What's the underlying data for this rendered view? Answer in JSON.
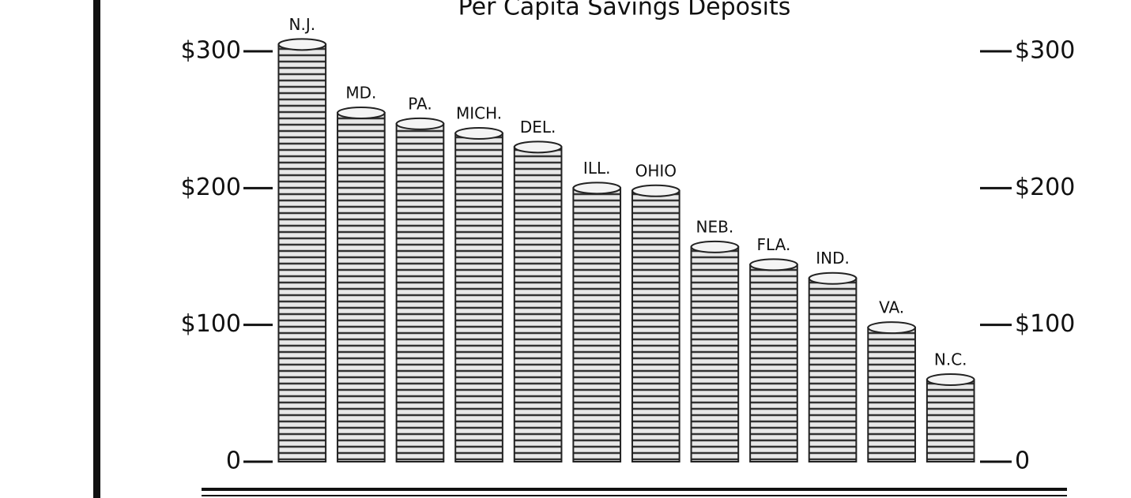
{
  "chart_data": {
    "type": "bar",
    "title": "Per Capita Savings Deposits",
    "categories": [
      "N.J.",
      "MD.",
      "PA.",
      "MICH.",
      "DEL.",
      "ILL.",
      "OHIO",
      "NEB.",
      "FLA.",
      "IND.",
      "VA.",
      "N.C."
    ],
    "values": [
      305,
      255,
      247,
      240,
      230,
      200,
      198,
      157,
      144,
      134,
      98,
      60
    ],
    "color": "#e8e8e8",
    "ylim": [
      0,
      300
    ],
    "yticks": [
      {
        "value": 0,
        "label": "0"
      },
      {
        "value": 100,
        "label": "$100"
      },
      {
        "value": 200,
        "label": "$200"
      },
      {
        "value": 300,
        "label": "$300"
      }
    ],
    "y2lim": [
      0,
      300
    ],
    "y2ticks": [
      {
        "value": 0,
        "label": "0"
      },
      {
        "value": 100,
        "label": "$100"
      },
      {
        "value": 200,
        "label": "$200"
      },
      {
        "value": 300,
        "label": "$300"
      }
    ]
  }
}
